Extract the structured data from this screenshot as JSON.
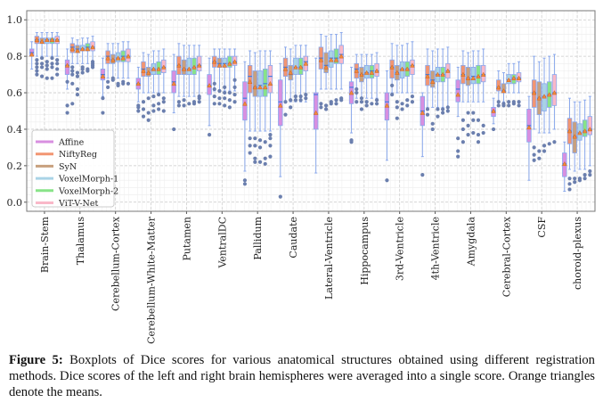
{
  "chart_data": {
    "type": "boxplot",
    "ylim": [
      -0.05,
      1.05
    ],
    "yticks": [
      "0.0",
      "0.2",
      "0.4",
      "0.6",
      "0.8",
      "1.0"
    ],
    "grid": true,
    "legend_placement": "lower-left",
    "categories": [
      "Brain-Stem",
      "Thalamus",
      "Cerebellum-Cortex",
      "Cerebellum-White-Matter",
      "Putamen",
      "VentralDC",
      "Pallidum",
      "Caudate",
      "Lateral-Ventricle",
      "Hippocampus",
      "3rd-Ventricle",
      "4th-Ventricle",
      "Amygdala",
      "Cerebral-Cortex",
      "CSF",
      "choroid-plexus"
    ],
    "series": [
      {
        "name": "Affine",
        "color": "#d88fe0"
      },
      {
        "name": "NiftyReg",
        "color": "#f29572"
      },
      {
        "name": "SyN",
        "color": "#c8a07e"
      },
      {
        "name": "VoxelMorph-1",
        "color": "#a9d3e6"
      },
      {
        "name": "VoxelMorph-2",
        "color": "#88e388"
      },
      {
        "name": "ViT-V-Net",
        "color": "#f9b8c8"
      }
    ],
    "box_fields": [
      "whisker_low",
      "q1",
      "median",
      "q3",
      "whisker_high",
      "mean"
    ],
    "boxes": [
      [
        [
          0.73,
          0.8,
          0.82,
          0.84,
          0.88,
          0.81
        ],
        [
          0.8,
          0.87,
          0.89,
          0.91,
          0.93,
          0.89
        ],
        [
          0.8,
          0.87,
          0.88,
          0.9,
          0.93,
          0.88
        ],
        [
          0.8,
          0.87,
          0.89,
          0.9,
          0.93,
          0.89
        ],
        [
          0.8,
          0.87,
          0.89,
          0.9,
          0.93,
          0.89
        ],
        [
          0.8,
          0.87,
          0.89,
          0.91,
          0.93,
          0.89
        ]
      ],
      [
        [
          0.62,
          0.7,
          0.75,
          0.78,
          0.84,
          0.75
        ],
        [
          0.76,
          0.82,
          0.85,
          0.87,
          0.9,
          0.84
        ],
        [
          0.76,
          0.82,
          0.84,
          0.86,
          0.89,
          0.83
        ],
        [
          0.76,
          0.83,
          0.84,
          0.86,
          0.9,
          0.84
        ],
        [
          0.76,
          0.83,
          0.85,
          0.87,
          0.9,
          0.84
        ],
        [
          0.77,
          0.83,
          0.85,
          0.88,
          0.91,
          0.85
        ]
      ],
      [
        [
          0.58,
          0.67,
          0.7,
          0.73,
          0.79,
          0.69
        ],
        [
          0.68,
          0.76,
          0.8,
          0.83,
          0.87,
          0.79
        ],
        [
          0.68,
          0.76,
          0.78,
          0.81,
          0.87,
          0.78
        ],
        [
          0.68,
          0.77,
          0.79,
          0.82,
          0.87,
          0.79
        ],
        [
          0.68,
          0.77,
          0.8,
          0.83,
          0.88,
          0.79
        ],
        [
          0.68,
          0.77,
          0.8,
          0.84,
          0.88,
          0.8
        ]
      ],
      [
        [
          0.55,
          0.62,
          0.65,
          0.68,
          0.74,
          0.65
        ],
        [
          0.6,
          0.69,
          0.73,
          0.77,
          0.82,
          0.72
        ],
        [
          0.6,
          0.69,
          0.71,
          0.74,
          0.81,
          0.71
        ],
        [
          0.6,
          0.7,
          0.73,
          0.76,
          0.83,
          0.73
        ],
        [
          0.6,
          0.7,
          0.73,
          0.77,
          0.83,
          0.73
        ],
        [
          0.6,
          0.71,
          0.74,
          0.78,
          0.84,
          0.74
        ]
      ],
      [
        [
          0.49,
          0.6,
          0.66,
          0.72,
          0.81,
          0.65
        ],
        [
          0.58,
          0.7,
          0.75,
          0.8,
          0.87,
          0.75
        ],
        [
          0.58,
          0.7,
          0.73,
          0.78,
          0.86,
          0.73
        ],
        [
          0.58,
          0.7,
          0.73,
          0.79,
          0.86,
          0.73
        ],
        [
          0.58,
          0.7,
          0.74,
          0.79,
          0.86,
          0.74
        ],
        [
          0.58,
          0.72,
          0.75,
          0.8,
          0.86,
          0.75
        ]
      ],
      [
        [
          0.42,
          0.59,
          0.64,
          0.7,
          0.79,
          0.64
        ],
        [
          0.61,
          0.74,
          0.77,
          0.8,
          0.84,
          0.77
        ],
        [
          0.61,
          0.74,
          0.76,
          0.79,
          0.84,
          0.75
        ],
        [
          0.61,
          0.74,
          0.76,
          0.79,
          0.84,
          0.75
        ],
        [
          0.61,
          0.74,
          0.76,
          0.8,
          0.84,
          0.76
        ],
        [
          0.61,
          0.75,
          0.77,
          0.8,
          0.84,
          0.77
        ]
      ],
      [
        [
          0.17,
          0.45,
          0.57,
          0.66,
          0.77,
          0.54
        ],
        [
          0.39,
          0.6,
          0.69,
          0.75,
          0.83,
          0.66
        ],
        [
          0.39,
          0.58,
          0.63,
          0.72,
          0.82,
          0.63
        ],
        [
          0.39,
          0.58,
          0.64,
          0.72,
          0.83,
          0.63
        ],
        [
          0.39,
          0.58,
          0.65,
          0.73,
          0.83,
          0.63
        ],
        [
          0.39,
          0.6,
          0.69,
          0.75,
          0.83,
          0.65
        ]
      ],
      [
        [
          0.14,
          0.42,
          0.55,
          0.67,
          0.76,
          0.53
        ],
        [
          0.55,
          0.69,
          0.74,
          0.79,
          0.85,
          0.73
        ],
        [
          0.55,
          0.67,
          0.7,
          0.75,
          0.84,
          0.71
        ],
        [
          0.55,
          0.7,
          0.74,
          0.79,
          0.86,
          0.74
        ],
        [
          0.55,
          0.7,
          0.74,
          0.79,
          0.86,
          0.74
        ],
        [
          0.55,
          0.72,
          0.77,
          0.8,
          0.86,
          0.76
        ]
      ],
      [
        [
          0.16,
          0.4,
          0.59,
          0.6,
          0.79,
          0.49
        ],
        [
          0.62,
          0.73,
          0.79,
          0.85,
          0.92,
          0.78
        ],
        [
          0.62,
          0.71,
          0.75,
          0.82,
          0.91,
          0.74
        ],
        [
          0.62,
          0.74,
          0.79,
          0.83,
          0.92,
          0.78
        ],
        [
          0.62,
          0.76,
          0.79,
          0.84,
          0.92,
          0.78
        ],
        [
          0.62,
          0.76,
          0.81,
          0.86,
          0.93,
          0.8
        ]
      ],
      [
        [
          0.38,
          0.54,
          0.63,
          0.66,
          0.74,
          0.6
        ],
        [
          0.57,
          0.68,
          0.73,
          0.76,
          0.81,
          0.72
        ],
        [
          0.57,
          0.66,
          0.7,
          0.74,
          0.81,
          0.7
        ],
        [
          0.57,
          0.68,
          0.71,
          0.75,
          0.81,
          0.71
        ],
        [
          0.57,
          0.68,
          0.72,
          0.75,
          0.81,
          0.71
        ],
        [
          0.57,
          0.69,
          0.72,
          0.76,
          0.82,
          0.72
        ]
      ],
      [
        [
          0.23,
          0.45,
          0.55,
          0.6,
          0.72,
          0.53
        ],
        [
          0.6,
          0.68,
          0.74,
          0.78,
          0.87,
          0.74
        ],
        [
          0.6,
          0.67,
          0.71,
          0.75,
          0.86,
          0.71
        ],
        [
          0.6,
          0.68,
          0.73,
          0.77,
          0.86,
          0.73
        ],
        [
          0.6,
          0.69,
          0.73,
          0.77,
          0.87,
          0.73
        ],
        [
          0.6,
          0.7,
          0.75,
          0.78,
          0.88,
          0.75
        ]
      ],
      [
        [
          0.25,
          0.42,
          0.5,
          0.58,
          0.6,
          0.49
        ],
        [
          0.52,
          0.64,
          0.7,
          0.75,
          0.84,
          0.69
        ],
        [
          0.52,
          0.63,
          0.67,
          0.72,
          0.83,
          0.66
        ],
        [
          0.52,
          0.66,
          0.7,
          0.74,
          0.84,
          0.7
        ],
        [
          0.52,
          0.66,
          0.7,
          0.74,
          0.84,
          0.7
        ],
        [
          0.52,
          0.68,
          0.72,
          0.76,
          0.85,
          0.72
        ]
      ],
      [
        [
          0.47,
          0.55,
          0.62,
          0.67,
          0.74,
          0.59
        ],
        [
          0.55,
          0.65,
          0.7,
          0.75,
          0.83,
          0.7
        ],
        [
          0.55,
          0.64,
          0.68,
          0.74,
          0.82,
          0.68
        ],
        [
          0.55,
          0.65,
          0.69,
          0.74,
          0.83,
          0.68
        ],
        [
          0.55,
          0.65,
          0.69,
          0.75,
          0.83,
          0.69
        ],
        [
          0.55,
          0.66,
          0.7,
          0.75,
          0.84,
          0.7
        ]
      ],
      [
        [
          0.43,
          0.47,
          0.5,
          0.52,
          0.57,
          0.5
        ],
        [
          0.55,
          0.61,
          0.63,
          0.67,
          0.72,
          0.63
        ],
        [
          0.55,
          0.6,
          0.61,
          0.65,
          0.71,
          0.61
        ],
        [
          0.6,
          0.65,
          0.67,
          0.7,
          0.76,
          0.67
        ],
        [
          0.6,
          0.65,
          0.68,
          0.7,
          0.76,
          0.68
        ],
        [
          0.6,
          0.66,
          0.68,
          0.71,
          0.77,
          0.68
        ]
      ],
      [
        [
          0.12,
          0.33,
          0.42,
          0.51,
          0.58,
          0.41
        ],
        [
          0.4,
          0.52,
          0.6,
          0.67,
          0.8,
          0.6
        ],
        [
          0.38,
          0.48,
          0.57,
          0.66,
          0.77,
          0.57
        ],
        [
          0.38,
          0.5,
          0.58,
          0.65,
          0.79,
          0.58
        ],
        [
          0.38,
          0.52,
          0.59,
          0.66,
          0.8,
          0.59
        ],
        [
          0.4,
          0.53,
          0.6,
          0.7,
          0.81,
          0.6
        ]
      ],
      [
        [
          0.06,
          0.14,
          0.21,
          0.27,
          0.33,
          0.21
        ],
        [
          0.18,
          0.32,
          0.39,
          0.46,
          0.57,
          0.39
        ],
        [
          0.17,
          0.27,
          0.36,
          0.44,
          0.55,
          0.36
        ],
        [
          0.18,
          0.34,
          0.38,
          0.43,
          0.55,
          0.38
        ],
        [
          0.18,
          0.36,
          0.39,
          0.45,
          0.56,
          0.39
        ],
        [
          0.2,
          0.37,
          0.4,
          0.47,
          0.58,
          0.4
        ]
      ]
    ],
    "outliers": [
      [
        [],
        [
          0.7,
          0.72,
          0.74,
          0.76,
          0.78
        ],
        [
          0.69,
          0.74,
          0.76,
          0.79
        ],
        [
          0.68,
          0.73,
          0.75,
          0.77
        ],
        [
          0.68,
          0.74,
          0.76,
          0.79
        ],
        [
          0.7,
          0.73,
          0.76,
          0.78
        ]
      ],
      [
        [
          0.49,
          0.53,
          0.66
        ],
        [
          0.54,
          0.65,
          0.7,
          0.72,
          0.74
        ],
        [
          0.59,
          0.62,
          0.69,
          0.71
        ],
        [
          0.71,
          0.73,
          0.74
        ],
        [
          0.72,
          0.73
        ],
        [
          0.74,
          0.75,
          0.76,
          0.77
        ]
      ],
      [
        [
          0.49,
          0.57
        ],
        [
          0.63,
          0.66
        ],
        [
          0.67,
          0.68
        ],
        [
          0.64,
          0.65
        ],
        [
          0.65,
          0.66
        ],
        [
          0.65
        ]
      ],
      [
        [
          0.5,
          0.52,
          0.53
        ],
        [
          0.47,
          0.51,
          0.55
        ],
        [
          0.45,
          0.49,
          0.57
        ],
        [
          0.5,
          0.53,
          0.58
        ],
        [
          0.51,
          0.54,
          0.59
        ],
        [
          0.5,
          0.55,
          0.57
        ]
      ],
      [
        [
          0.4
        ],
        [
          0.53,
          0.55
        ],
        [
          0.53,
          0.56
        ],
        [
          0.54
        ],
        [
          0.54,
          0.55
        ],
        [
          0.55,
          0.57,
          0.58
        ]
      ],
      [
        [
          0.37
        ],
        [
          0.54,
          0.58,
          0.62,
          0.65
        ],
        [
          0.54,
          0.57,
          0.61
        ],
        [
          0.53,
          0.57,
          0.6,
          0.63
        ],
        [
          0.52,
          0.56,
          0.6
        ],
        [
          0.55,
          0.59,
          0.63,
          0.67
        ]
      ],
      [
        [
          0.1,
          0.12
        ],
        [
          0.27,
          0.31,
          0.35
        ],
        [
          0.22,
          0.24,
          0.31,
          0.35
        ],
        [
          0.22,
          0.3,
          0.34
        ],
        [
          0.21,
          0.24,
          0.33
        ],
        [
          0.25,
          0.31,
          0.35,
          0.37
        ]
      ],
      [
        [
          0.03
        ],
        [
          0.48,
          0.55
        ],
        [
          0.52,
          0.56
        ],
        [
          0.56,
          0.58
        ],
        [
          0.56,
          0.58
        ],
        [
          0.57,
          0.59
        ]
      ],
      [
        [],
        [
          0.52,
          0.54
        ],
        [
          0.51,
          0.53
        ],
        [
          0.54,
          0.55
        ],
        [
          0.54,
          0.56
        ],
        [
          0.56,
          0.57
        ]
      ],
      [
        [
          0.33,
          0.34
        ],
        [
          0.55,
          0.6,
          0.62
        ],
        [
          0.51,
          0.55,
          0.57
        ],
        [
          0.53,
          0.55
        ],
        [
          0.54
        ],
        [
          0.54,
          0.56
        ]
      ],
      [
        [
          0.12
        ],
        [
          0.59,
          0.64
        ],
        [
          0.46,
          0.52,
          0.55
        ],
        [
          0.51,
          0.54
        ],
        [
          0.53,
          0.56
        ],
        [
          0.55,
          0.58
        ]
      ],
      [
        [
          0.15
        ],
        [
          0.48,
          0.51
        ],
        [
          0.4,
          0.43
        ],
        [
          0.47,
          0.51
        ],
        [
          0.49,
          0.51
        ],
        [
          0.5,
          0.52
        ]
      ],
      [
        [
          0.25,
          0.28,
          0.35
        ],
        [
          0.33,
          0.4,
          0.45
        ],
        [
          0.37,
          0.42,
          0.49
        ],
        [
          0.38,
          0.45,
          0.49
        ],
        [
          0.33,
          0.37,
          0.45
        ],
        [
          0.38,
          0.42
        ]
      ],
      [
        [
          0.4
        ],
        [
          0.53,
          0.55
        ],
        [
          0.53,
          0.54
        ],
        [
          0.53,
          0.55
        ],
        [
          0.54,
          0.55
        ],
        [
          0.53,
          0.55
        ]
      ],
      [
        [],
        [
          0.23,
          0.26,
          0.3
        ],
        [
          0.24,
          0.28
        ],
        [
          0.28,
          0.31
        ],
        [
          0.32
        ],
        [
          0.33
        ]
      ],
      [
        [],
        [
          0.07,
          0.1,
          0.13
        ],
        [
          0.11,
          0.13
        ],
        [
          0.12,
          0.13
        ],
        [
          0.13,
          0.15
        ],
        [
          0.15,
          0.17
        ]
      ]
    ]
  },
  "caption": {
    "label": "Figure 5:",
    "text": "Boxplots of Dice scores for various anatomical structures obtained using different registration methods. Dice scores of the left and right brain hemispheres were averaged into a single score. Orange triangles denote the means."
  }
}
